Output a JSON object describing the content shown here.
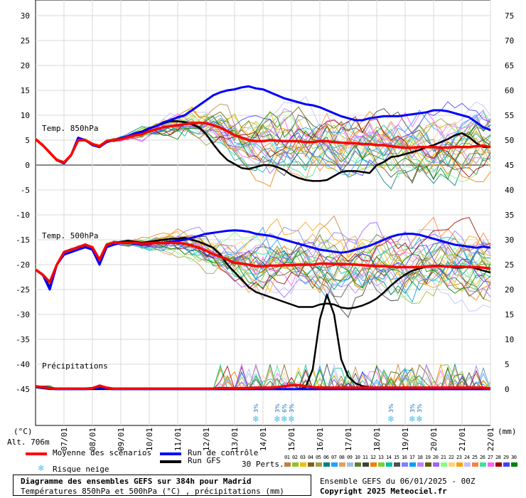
{
  "chart_data": {
    "type": "line",
    "title": "Diagramme des ensembles GEFS sur 384h pour Madrid",
    "subtitle": "Températures 850hPa et 500hPa (°C) , précipitations (mm)",
    "left_axis": {
      "unit": "(°C)",
      "ticks": [
        30,
        25,
        20,
        15,
        10,
        5,
        0,
        -5,
        -10,
        -15,
        -20,
        -25,
        -30,
        -35,
        -40,
        -45
      ],
      "range": [
        -45,
        30
      ]
    },
    "right_axis": {
      "unit": "(mm)",
      "ticks": [
        75,
        70,
        65,
        60,
        55,
        50,
        45,
        40,
        35,
        30,
        25,
        20,
        15,
        10,
        5,
        0
      ],
      "range": [
        0,
        75
      ]
    },
    "x_ticks": [
      "07/01",
      "08/01",
      "09/01",
      "10/01",
      "11/01",
      "12/01",
      "13/01",
      "14/01",
      "15/01",
      "16/01",
      "17/01",
      "18/01",
      "19/01",
      "20/01",
      "21/01",
      "22/01"
    ],
    "x_range_hours": [
      0,
      384
    ],
    "panels": {
      "t850": "Temp. 850hPa",
      "t500": "Temp. 500hPa",
      "precip": "Précipitations"
    },
    "altitude_label": "Alt. 706m",
    "hours": [
      0,
      6,
      12,
      18,
      24,
      30,
      36,
      42,
      48,
      54,
      60,
      66,
      72,
      78,
      84,
      90,
      96,
      102,
      108,
      114,
      120,
      126,
      132,
      138,
      144,
      150,
      156,
      162,
      168,
      174,
      180,
      186,
      192,
      198,
      204,
      210,
      216,
      222,
      228,
      234,
      240,
      246,
      252,
      258,
      264,
      270,
      276,
      282,
      288,
      294,
      300,
      306,
      312,
      318,
      324,
      330,
      336,
      342,
      348,
      354,
      360,
      366,
      372,
      378,
      384
    ],
    "series": [
      {
        "name": "Moyenne des scénarios",
        "color": "#ff0000",
        "t850": [
          5.2,
          4,
          2.5,
          1,
          0.5,
          2,
          5,
          5,
          4.2,
          3.8,
          4.8,
          5,
          5.2,
          5.6,
          6,
          6.2,
          6.8,
          7.2,
          7.6,
          7.8,
          8,
          8.2,
          8.4,
          8.5,
          8.4,
          8,
          7.5,
          6.8,
          6,
          5.5,
          5,
          4.8,
          4.8,
          5,
          4.9,
          4.8,
          4.8,
          4.8,
          4.6,
          4.6,
          4.8,
          4.8,
          4.6,
          4.5,
          4.4,
          4.4,
          4.2,
          4.2,
          4,
          4,
          3.8,
          3.6,
          3.5,
          3.5,
          3.6,
          3.6,
          3.6,
          3.5,
          3.5,
          3.6,
          3.6,
          3.6,
          3.8,
          3.9,
          3.6
        ],
        "t500": [
          -21,
          -22,
          -23.5,
          -20,
          -17.5,
          -17,
          -16.5,
          -16,
          -16.5,
          -19,
          -16,
          -15.6,
          -15.6,
          -15.6,
          -15.6,
          -15.8,
          -15.7,
          -15.6,
          -15.7,
          -15.6,
          -15.6,
          -15.8,
          -16.2,
          -16.6,
          -17.2,
          -17.9,
          -18.4,
          -19,
          -19.6,
          -19.8,
          -20,
          -20.3,
          -20.3,
          -20.2,
          -20.2,
          -20.1,
          -20.1,
          -20,
          -20,
          -20,
          -19.8,
          -19.8,
          -19.9,
          -19.9,
          -19.9,
          -20,
          -20.1,
          -20.2,
          -20.3,
          -20.3,
          -20.4,
          -20.5,
          -20.5,
          -20.5,
          -20.5,
          -20.4,
          -20.3,
          -20.3,
          -20.4,
          -20.4,
          -20.4,
          -20.5,
          -20.5,
          -20.6,
          -20.8
        ],
        "precip": [
          0.6,
          0.4,
          0.2,
          0.1,
          0.1,
          0.1,
          0.1,
          0.1,
          0.2,
          0.7,
          0.3,
          0.1,
          0.1,
          0.1,
          0.1,
          0.1,
          0.1,
          0.1,
          0.1,
          0.1,
          0.1,
          0.1,
          0.1,
          0.1,
          0.1,
          0.1,
          0.2,
          0.2,
          0.2,
          0.2,
          0.2,
          0.3,
          0.3,
          0.3,
          0.4,
          0.6,
          0.8,
          0.8,
          0.6,
          0.4,
          0.3,
          0.3,
          0.3,
          0.3,
          0.3,
          0.3,
          0.3,
          0.3,
          0.3,
          0.3,
          0.3,
          0.3,
          0.3,
          0.3,
          0.3,
          0.3,
          0.3,
          0.3,
          0.3,
          0.3,
          0.3,
          0.3,
          0.3,
          0.3,
          0.1
        ]
      },
      {
        "name": "Run de contrôle",
        "color": "#0000ff",
        "t850": [
          5.2,
          4,
          2.5,
          1,
          0.3,
          2,
          5.5,
          5,
          4,
          3.6,
          4.6,
          5,
          5.4,
          5.8,
          6.4,
          6.6,
          7.4,
          7.8,
          8.6,
          9,
          9.6,
          10,
          11,
          12,
          13,
          14,
          14.6,
          15,
          15.2,
          15.6,
          15.8,
          15.4,
          15.2,
          14.6,
          14,
          13.4,
          13,
          12.6,
          12.2,
          12,
          11.6,
          11,
          10.4,
          9.8,
          9.4,
          9,
          9,
          9.4,
          9.6,
          9.8,
          9.8,
          9.8,
          10,
          10.2,
          10.4,
          10.6,
          11,
          11,
          10.8,
          10.4,
          10,
          9.6,
          8.6,
          7.6,
          7
        ],
        "t500": [
          -21,
          -22,
          -25,
          -20,
          -18,
          -17.5,
          -17,
          -16.5,
          -17,
          -20,
          -16.5,
          -16,
          -15.6,
          -15.6,
          -15.8,
          -16,
          -15.8,
          -15.6,
          -15.6,
          -15.4,
          -15.2,
          -15,
          -14.6,
          -14.2,
          -13.8,
          -13.6,
          -13.4,
          -13.2,
          -13.1,
          -13.2,
          -13.4,
          -13.8,
          -14,
          -14.2,
          -14.6,
          -15,
          -15.4,
          -15.8,
          -16.2,
          -16.6,
          -17,
          -17.2,
          -17.4,
          -17.6,
          -17.4,
          -17,
          -16.6,
          -16.2,
          -15.6,
          -15,
          -14.4,
          -14,
          -13.8,
          -13.8,
          -14,
          -14.4,
          -14.8,
          -15.2,
          -15.6,
          -16,
          -16.2,
          -16.4,
          -16.6,
          -16.4,
          -16.6
        ],
        "precip": [
          0.5,
          0.3,
          0.1,
          0,
          0,
          0,
          0,
          0,
          0.1,
          0.3,
          0.1,
          0,
          0,
          0,
          0,
          0,
          0,
          0,
          0,
          0,
          0,
          0,
          0,
          0,
          0,
          0,
          0,
          0,
          0,
          0,
          0,
          0,
          0,
          0,
          0,
          0,
          0,
          0,
          0,
          0,
          0,
          0,
          0,
          0,
          0,
          0,
          0,
          0,
          0,
          0,
          0,
          0,
          0,
          0,
          0,
          0,
          0,
          0,
          0,
          0,
          0,
          0,
          0,
          0,
          0
        ]
      },
      {
        "name": "Run GFS",
        "color": "#000000",
        "t850": [
          5.2,
          4,
          2.5,
          1,
          0.3,
          2,
          5.2,
          5,
          4.2,
          3.8,
          4.6,
          5,
          5.4,
          5.8,
          6.4,
          6.8,
          7.4,
          7.8,
          8.4,
          8.8,
          8.8,
          8.6,
          8.2,
          7.6,
          6.2,
          4.2,
          2.4,
          1,
          0.2,
          -0.6,
          -0.8,
          -0.4,
          0,
          0,
          -0.4,
          -1,
          -2,
          -2.6,
          -3,
          -3.2,
          -3.2,
          -3,
          -2.2,
          -1.4,
          -1.2,
          -1.2,
          -1.4,
          -1.6,
          0,
          0.6,
          1.6,
          1.8,
          2.2,
          2.6,
          3,
          3.6,
          4,
          4.6,
          5.2,
          6,
          6.4,
          5.6,
          4.4,
          3.6,
          3.6
        ],
        "t500": [
          -21,
          -22,
          -24.5,
          -20,
          -17.5,
          -17,
          -16.5,
          -16.5,
          -17,
          -20,
          -16,
          -15.6,
          -15.4,
          -15.2,
          -15.4,
          -15.6,
          -15.4,
          -15.2,
          -15,
          -14.8,
          -14.8,
          -14.6,
          -15,
          -15.4,
          -16,
          -16.6,
          -18,
          -20,
          -21.5,
          -23,
          -24.5,
          -25.5,
          -26,
          -26.5,
          -27,
          -27.5,
          -28,
          -28.5,
          -28.5,
          -28.5,
          -28,
          -27.8,
          -28,
          -28.6,
          -28.8,
          -28.6,
          -28.2,
          -27.6,
          -26.8,
          -25.6,
          -24.2,
          -23,
          -22,
          -21.2,
          -20.8,
          -20.4,
          -20.2,
          -20.2,
          -20.4,
          -20.6,
          -20.6,
          -20.4,
          -20.8,
          -21.2,
          -21.6
        ],
        "precip": [
          0.4,
          0.2,
          0,
          0,
          0,
          0,
          0,
          0,
          0,
          0,
          0,
          0,
          0,
          0,
          0,
          0,
          0,
          0,
          0,
          0,
          0,
          0,
          0,
          0,
          0,
          0,
          0,
          0,
          0,
          0,
          0,
          0,
          0,
          0,
          0,
          0,
          0,
          0,
          0.4,
          4,
          14,
          19,
          15,
          6,
          2.5,
          1.2,
          0.6,
          0.4,
          0.3,
          0.2,
          0.2,
          0.2,
          0.2,
          0.2,
          0.2,
          0.2,
          0.2,
          0.2,
          0.2,
          0.2,
          0.2,
          0.2,
          0.2,
          0.2,
          0.2
        ]
      }
    ],
    "snow_risk_labels": [
      {
        "hour": 186,
        "label": "3%"
      },
      {
        "hour": 204,
        "label": "3%"
      },
      {
        "hour": 210,
        "label": "6%"
      },
      {
        "hour": 216,
        "label": "3%"
      },
      {
        "hour": 300,
        "label": "3%"
      },
      {
        "hour": 318,
        "label": "3%"
      },
      {
        "hour": 324,
        "label": "3%"
      }
    ]
  },
  "legend": {
    "mean": "Moyenne des scénarios",
    "control": "Run de contrôle",
    "gfs": "Run GFS",
    "snow": "Risque neige",
    "perts": "30 Perts."
  },
  "perturbations": {
    "labels": [
      "01",
      "02",
      "03",
      "04",
      "05",
      "06",
      "07",
      "08",
      "09",
      "10",
      "11",
      "12",
      "13",
      "14",
      "15",
      "16",
      "17",
      "18",
      "19",
      "20",
      "21",
      "22",
      "23",
      "24",
      "25",
      "26",
      "27",
      "28",
      "29",
      "30"
    ],
    "colors": [
      "#c08040",
      "#90c030",
      "#f0c000",
      "#806020",
      "#a0a040",
      "#008080",
      "#20a0ff",
      "#e0a060",
      "#a0c0e0",
      "#608030",
      "#404040",
      "#f08000",
      "#80d030",
      "#00c0a0",
      "#505050",
      "#8080ff",
      "#00a0f0",
      "#c080ff",
      "#606000",
      "#a060ff",
      "#80ff80",
      "#ffd080",
      "#ffa000",
      "#c0c0ff",
      "#ff8040",
      "#40e0a0",
      "#ff60ff",
      "#a00000",
      "#4040ff",
      "#008000"
    ]
  },
  "footer": {
    "title": "Diagramme des ensembles GEFS sur 384h pour Madrid",
    "subtitle": "Températures 850hPa et 500hPa (°C) , précipitations (mm)",
    "run_info": "Ensemble GEFS du 06/01/2025 - 00Z",
    "copyright": "Copyright 2025 Meteociel.fr"
  }
}
